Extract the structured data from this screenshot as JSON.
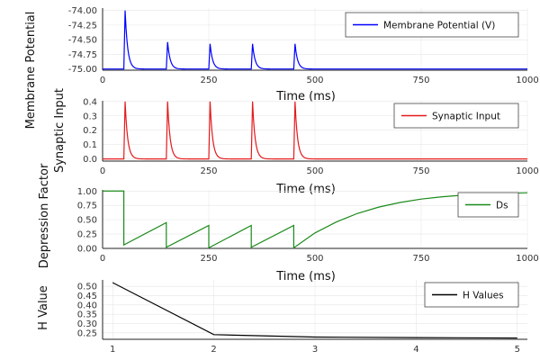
{
  "chart_data": [
    {
      "type": "line",
      "xlabel": "Time (ms)",
      "ylabel": "Membrane Potential",
      "xlim": [
        0,
        1000
      ],
      "ylim": [
        -75.02,
        -73.96
      ],
      "x_ticks": [
        "0",
        "250",
        "500",
        "750",
        "1000"
      ],
      "y_ticks": [
        "-74.00",
        "-74.25",
        "-74.50",
        "-74.75",
        "-75.00"
      ],
      "grid": true,
      "legend_position": "top-right",
      "series": [
        {
          "name": "Membrane Potential (V)",
          "color": "#0000ff",
          "baseline": -75.0,
          "events": [
            {
              "t": 50,
              "peak": -74.0
            },
            {
              "t": 150,
              "peak": -74.54
            },
            {
              "t": 250,
              "peak": -74.57
            },
            {
              "t": 350,
              "peak": -74.57
            },
            {
              "t": 450,
              "peak": -74.57
            }
          ]
        }
      ]
    },
    {
      "type": "line",
      "xlabel": "Time (ms)",
      "ylabel": "Synaptic Input",
      "xlim": [
        0,
        1000
      ],
      "ylim": [
        -0.015,
        0.405
      ],
      "x_ticks": [
        "0",
        "250",
        "500",
        "750",
        "1000"
      ],
      "y_ticks": [
        "0.4",
        "0.3",
        "0.2",
        "0.1",
        "0.0"
      ],
      "grid": true,
      "legend_position": "top-right",
      "series": [
        {
          "name": "Synaptic Input",
          "color": "#e41a1c",
          "baseline": 0.0,
          "events": [
            {
              "t": 50,
              "peak": 0.4
            },
            {
              "t": 150,
              "peak": 0.4
            },
            {
              "t": 250,
              "peak": 0.4
            },
            {
              "t": 350,
              "peak": 0.4
            },
            {
              "t": 450,
              "peak": 0.4
            }
          ]
        }
      ]
    },
    {
      "type": "line",
      "xlabel": "Time (ms)",
      "ylabel": "Depression Factor",
      "xlim": [
        0,
        1000
      ],
      "ylim": [
        0.0,
        1.02
      ],
      "x_ticks": [
        "0",
        "250",
        "500",
        "750",
        "1000"
      ],
      "y_ticks": [
        "1.00",
        "0.75",
        "0.50",
        "0.25",
        "0.00"
      ],
      "grid": true,
      "legend_position": "top-right",
      "series": [
        {
          "name": "Ds",
          "color": "#1a8a1a",
          "x": [
            0,
            50,
            50,
            150,
            150,
            250,
            250,
            350,
            350,
            450,
            450,
            500,
            550,
            600,
            650,
            700,
            750,
            800,
            850,
            900,
            950,
            1000
          ],
          "y": [
            1.0,
            1.0,
            0.06,
            0.45,
            0.02,
            0.4,
            0.01,
            0.4,
            0.02,
            0.4,
            0.01,
            0.27,
            0.46,
            0.61,
            0.72,
            0.8,
            0.86,
            0.9,
            0.93,
            0.95,
            0.96,
            0.97
          ]
        }
      ]
    },
    {
      "type": "line",
      "xlabel": "",
      "ylabel": "H Value",
      "xlim": [
        0.9,
        5.1
      ],
      "ylim": [
        0.215,
        0.535
      ],
      "x_ticks": [
        "1",
        "2",
        "3",
        "4",
        "5"
      ],
      "y_ticks": [
        "0.50",
        "0.45",
        "0.40",
        "0.35",
        "0.30",
        "0.25"
      ],
      "grid": true,
      "legend_position": "top-right",
      "series": [
        {
          "name": "H Values",
          "color": "#000000",
          "x": [
            1,
            2,
            3,
            4,
            5
          ],
          "y": [
            0.52,
            0.24,
            0.227,
            0.224,
            0.222
          ]
        }
      ]
    }
  ]
}
